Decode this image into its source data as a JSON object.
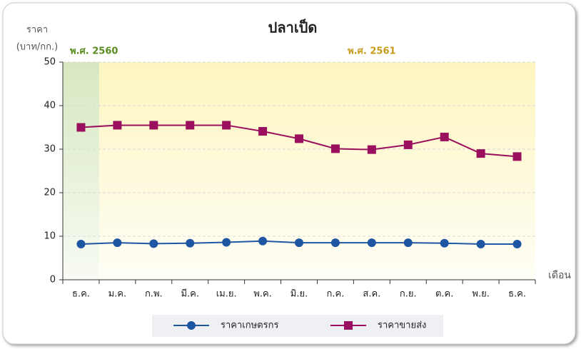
{
  "chart_data": {
    "type": "line",
    "title": "ปลาเป็ด",
    "ylabel": [
      "ราคา",
      "(บาท/กก.)"
    ],
    "xlabel": "เดือน",
    "annotations": [
      {
        "text": "พ.ศ. 2560",
        "color": "#5b8c1f"
      },
      {
        "text": "พ.ศ. 2561",
        "color": "#c89b1c"
      }
    ],
    "categories": [
      "ธ.ค.",
      "ม.ค.",
      "ก.พ.",
      "มี.ค.",
      "เม.ย.",
      "พ.ค.",
      "มิ.ย.",
      "ก.ค.",
      "ส.ค.",
      "ก.ย.",
      "ต.ค.",
      "พ.ย.",
      "ธ.ค."
    ],
    "series": [
      {
        "name": "ราคาเกษตรกร",
        "color": "#1f56a3",
        "marker": "circle",
        "values": [
          8.2,
          8.5,
          8.3,
          8.4,
          8.6,
          8.9,
          8.5,
          8.5,
          8.5,
          8.5,
          8.4,
          8.2,
          8.2
        ]
      },
      {
        "name": "ราคาขายส่ง",
        "color": "#9a0f5e",
        "marker": "square",
        "values": [
          35,
          35.5,
          35.5,
          35.5,
          35.5,
          34.1,
          32.4,
          30.1,
          29.9,
          31,
          32.8,
          29,
          28.3
        ]
      }
    ],
    "ylim": [
      0,
      50
    ],
    "yticks": [
      0,
      10,
      20,
      30,
      40,
      50
    ],
    "grid": true
  }
}
